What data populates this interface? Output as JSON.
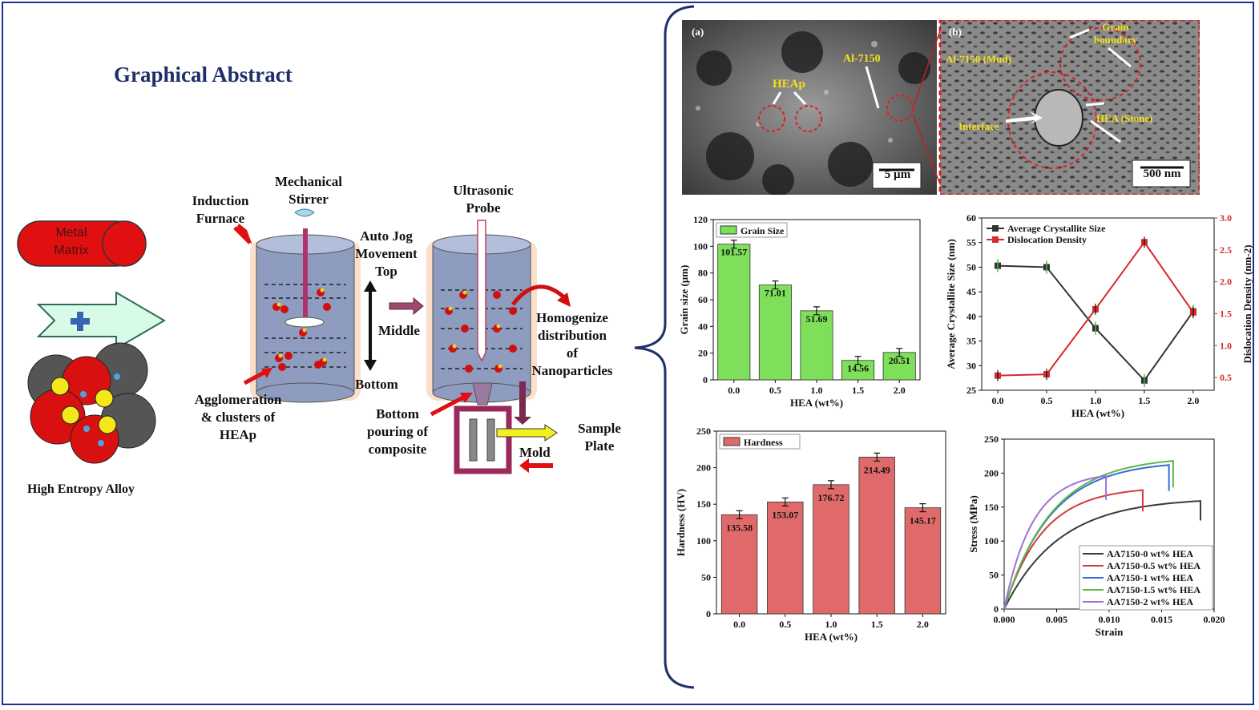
{
  "title": "Graphical Abstract",
  "left": {
    "metal_matrix": [
      "Metal",
      "Matrix"
    ],
    "hea_label": "High Entropy Alloy",
    "induction_furnace": [
      "Induction",
      "Furnace"
    ],
    "mechanical_stirrer": [
      "Mechanical",
      "Stirrer"
    ],
    "auto_jog": [
      "Auto Jog",
      "Movement",
      "Top"
    ],
    "middle": "Middle",
    "bottom": "Bottom",
    "agglomeration": [
      "Agglomeration",
      "& clusters of",
      "HEAp"
    ],
    "ultrasonic_probe": [
      "Ultrasonic",
      "Probe"
    ],
    "homogenize": [
      "Homogenize",
      "distribution",
      "of",
      "Nanoparticles"
    ],
    "bottom_pouring": [
      "Bottom",
      "pouring of",
      "composite"
    ],
    "sample_plate": [
      "Sample",
      "Plate"
    ],
    "mold": "Mold"
  },
  "sem": {
    "a": {
      "tag": "(a)",
      "heap": "HEAp",
      "al": "Al-7150",
      "scale": "5 µm"
    },
    "b": {
      "tag": "(b)",
      "grain": [
        "Grain",
        "boundary"
      ],
      "mud": "Al-7150 (Mud)",
      "interface": "Interface",
      "hea": "HEA (Stone)",
      "scale": "500 nm"
    }
  },
  "colors": {
    "green": "#7ee05a",
    "red_bar": "#e06a6a",
    "crys": "#333333",
    "disl": "#d42b2b"
  },
  "chart_data": [
    {
      "type": "bar",
      "legend": "Grain Size",
      "categories": [
        "0.0",
        "0.5",
        "1.0",
        "1.5",
        "2.0"
      ],
      "values": [
        101.57,
        71.01,
        51.69,
        14.56,
        20.51
      ],
      "value_labels": [
        "101.57",
        "71.01",
        "51.69",
        "14.56",
        "20.51"
      ],
      "xlabel": "HEA (wt%)",
      "ylabel": "Grain size (µm)",
      "ylim": [
        0,
        120
      ],
      "yticks": [
        "0",
        "20",
        "40",
        "60",
        "80",
        "100",
        "120"
      ]
    },
    {
      "type": "line",
      "x": [
        "0.0",
        "0.5",
        "1.0",
        "1.5",
        "2.0"
      ],
      "series": [
        {
          "name": "Average Crystallite Size",
          "values": [
            50.3,
            50.0,
            37.6,
            27.0,
            41.0
          ]
        },
        {
          "name": "Dislocation Density",
          "values": [
            0.53,
            0.55,
            1.57,
            2.62,
            1.52
          ]
        }
      ],
      "xlabel": "HEA (wt%)",
      "ylabel": "Average Crystallite Size (nm)",
      "y2label": "Dislocation Density (nm-2)",
      "ylim": [
        25,
        60
      ],
      "y2lim": [
        0.3,
        3.0
      ],
      "yticks": [
        "25",
        "30",
        "35",
        "40",
        "45",
        "50",
        "55",
        "60"
      ],
      "y2ticks": [
        "0.5",
        "1.0",
        "1.5",
        "2.0",
        "2.5",
        "3.0"
      ]
    },
    {
      "type": "bar",
      "legend": "Hardness",
      "categories": [
        "0.0",
        "0.5",
        "1.0",
        "1.5",
        "2.0"
      ],
      "values": [
        135.58,
        153.07,
        176.72,
        214.49,
        145.17
      ],
      "value_labels": [
        "135.58",
        "153.07",
        "176.72",
        "214.49",
        "145.17"
      ],
      "xlabel": "HEA (wt%)",
      "ylabel": "Hardness (HV)",
      "ylim": [
        0,
        250
      ],
      "yticks": [
        "0",
        "50",
        "100",
        "150",
        "200",
        "250"
      ]
    },
    {
      "type": "line",
      "series": [
        {
          "name": "AA7150-0 wt% HEA",
          "color": "#3a3a3a",
          "end_strain": 0.0187,
          "peak_stress": 159
        },
        {
          "name": "AA7150-0.5 wt% HEA",
          "color": "#d43a3a",
          "end_strain": 0.0132,
          "peak_stress": 175
        },
        {
          "name": "AA7150-1 wt% HEA",
          "color": "#3a6ad4",
          "end_strain": 0.0157,
          "peak_stress": 212
        },
        {
          "name": "AA7150-1.5 wt% HEA",
          "color": "#5ab84a",
          "end_strain": 0.0161,
          "peak_stress": 218
        },
        {
          "name": "AA7150-2 wt% HEA",
          "color": "#a070d8",
          "end_strain": 0.0097,
          "peak_stress": 196
        }
      ],
      "xlabel": "Strain",
      "ylabel": "Stress (MPa)",
      "xlim": [
        0,
        0.02
      ],
      "ylim": [
        0,
        250
      ],
      "xticks": [
        "0.000",
        "0.005",
        "0.010",
        "0.015",
        "0.020"
      ],
      "yticks": [
        "0",
        "50",
        "100",
        "150",
        "200",
        "250"
      ]
    }
  ]
}
